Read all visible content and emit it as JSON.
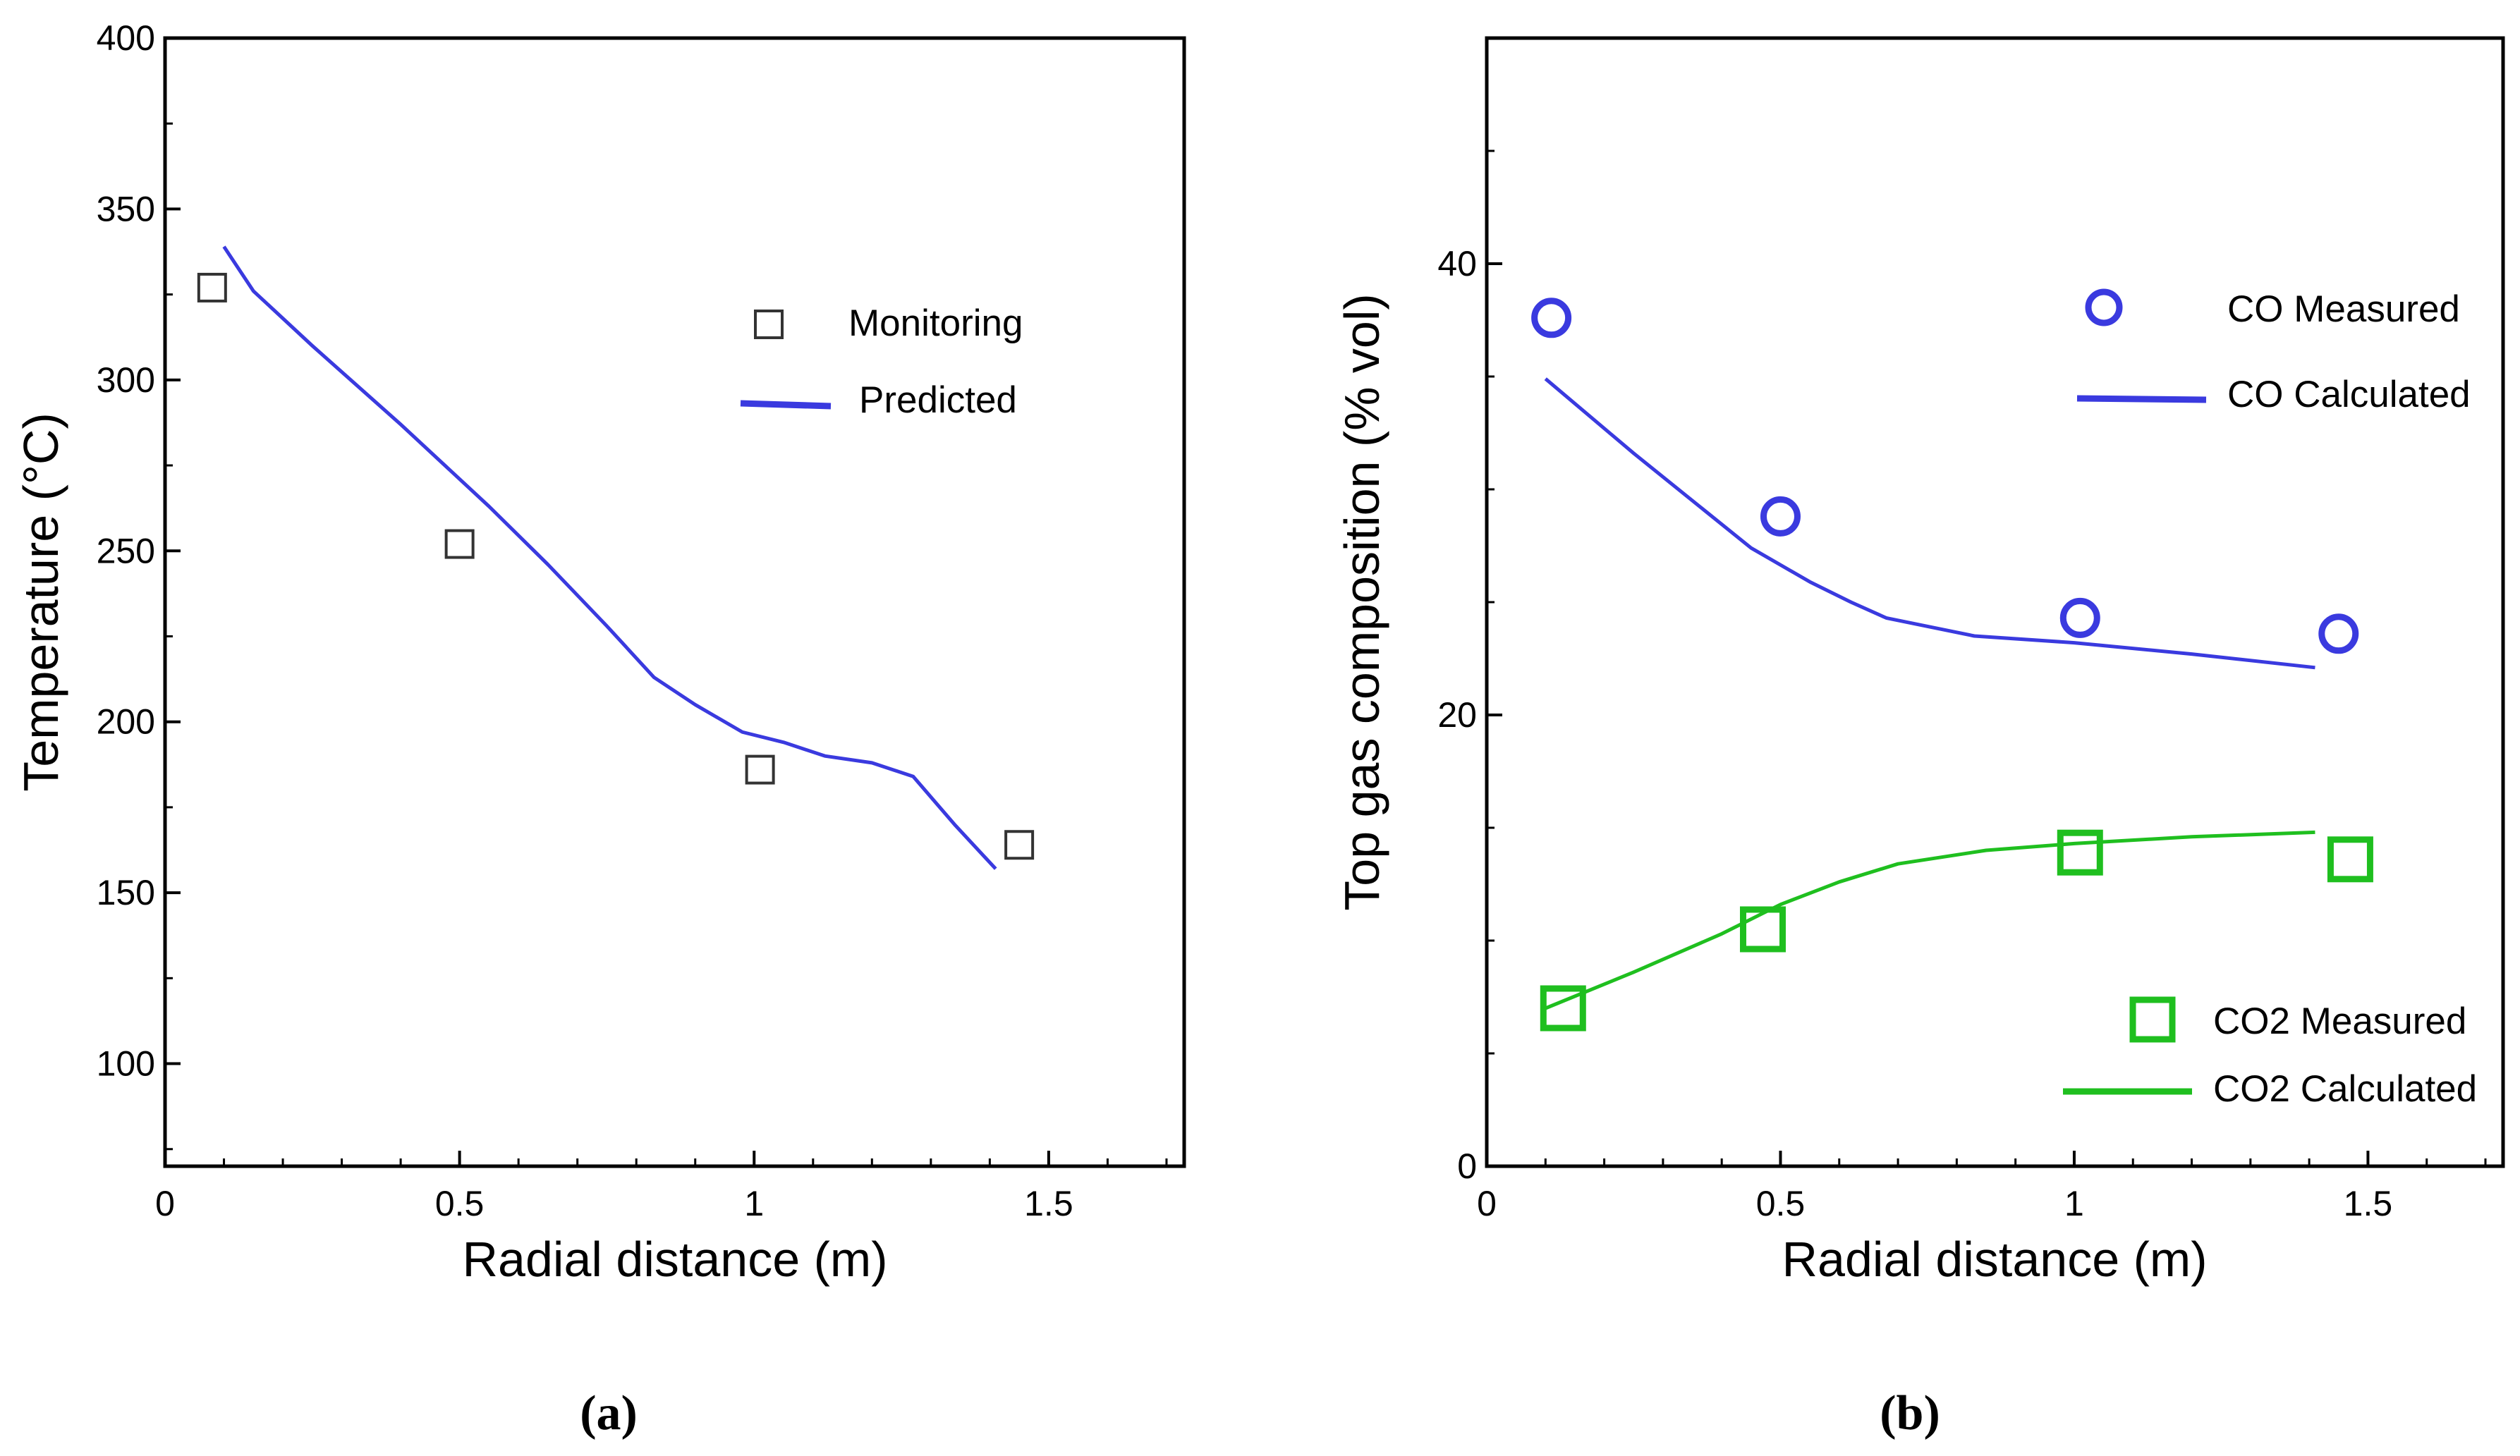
{
  "chart_data": [
    {
      "panel": "a",
      "type": "line+scatter",
      "xlabel": "Radial distance (m)",
      "ylabel": "Temperature (°C)",
      "xlim": [
        0,
        1.73
      ],
      "ylim": [
        70,
        400
      ],
      "xticks": [
        {
          "v": 0,
          "label": "0"
        },
        {
          "v": 0.5,
          "label": "0.5"
        },
        {
          "v": 1,
          "label": "1"
        },
        {
          "v": 1.5,
          "label": "1.5"
        }
      ],
      "yticks": [
        {
          "v": 100,
          "label": "100"
        },
        {
          "v": 150,
          "label": "150"
        },
        {
          "v": 200,
          "label": "200"
        },
        {
          "v": 250,
          "label": "250"
        },
        {
          "v": 300,
          "label": "300"
        },
        {
          "v": 350,
          "label": "350"
        },
        {
          "v": 400,
          "label": "400"
        }
      ],
      "series": [
        {
          "name": "Monitoring",
          "kind": "scatter",
          "marker": "square",
          "color": "#333333",
          "x": [
            0.08,
            0.5,
            1.01,
            1.45
          ],
          "y": [
            327,
            252,
            186,
            164
          ]
        },
        {
          "name": "Predicted",
          "kind": "line",
          "color": "#3a3adf",
          "x": [
            0.1,
            0.15,
            0.25,
            0.4,
            0.55,
            0.65,
            0.75,
            0.83,
            0.9,
            0.98,
            1.05,
            1.12,
            1.2,
            1.27,
            1.34,
            1.41
          ],
          "y": [
            339,
            326,
            310,
            287,
            263,
            246,
            228,
            213,
            205,
            197,
            194,
            190,
            188,
            184,
            170,
            157
          ]
        }
      ],
      "legend": [
        {
          "label": "Monitoring",
          "marker": "square"
        },
        {
          "label": "Predicted",
          "marker": "line"
        }
      ],
      "caption": "(a)"
    },
    {
      "panel": "b",
      "type": "line+scatter",
      "xlabel": "Radial distance (m)",
      "ylabel": "Top gas composition (% vol)",
      "xlim": [
        0,
        1.73
      ],
      "ylim": [
        0,
        50
      ],
      "xticks": [
        {
          "v": 0,
          "label": "0"
        },
        {
          "v": 0.5,
          "label": "0.5"
        },
        {
          "v": 1,
          "label": "1"
        },
        {
          "v": 1.5,
          "label": "1.5"
        }
      ],
      "yticks": [
        {
          "v": 0,
          "label": "0"
        },
        {
          "v": 20,
          "label": "20"
        },
        {
          "v": 40,
          "label": "40"
        }
      ],
      "series": [
        {
          "name": "CO Measured",
          "kind": "scatter",
          "marker": "circle",
          "color": "#3a3adf",
          "x": [
            0.11,
            0.5,
            1.01,
            1.45
          ],
          "y": [
            37.6,
            28.8,
            24.3,
            23.6
          ]
        },
        {
          "name": "CO Calculated",
          "kind": "line",
          "color": "#3a3adf",
          "x": [
            0.1,
            0.25,
            0.45,
            0.55,
            0.62,
            0.68,
            0.83,
            1.0,
            1.2,
            1.41
          ],
          "y": [
            34.9,
            31.6,
            27.4,
            25.9,
            25.0,
            24.3,
            23.5,
            23.2,
            22.7,
            22.1
          ]
        },
        {
          "name": "CO2 Measured",
          "kind": "scatter",
          "marker": "square",
          "color": "#1fbf1f",
          "x": [
            0.13,
            0.47,
            1.01,
            1.47
          ],
          "y": [
            7.0,
            10.5,
            13.9,
            13.6
          ]
        },
        {
          "name": "CO2 Calculated",
          "kind": "line",
          "color": "#1fbf1f",
          "x": [
            0.1,
            0.25,
            0.4,
            0.5,
            0.6,
            0.7,
            0.85,
            1.0,
            1.2,
            1.41
          ],
          "y": [
            7.0,
            8.6,
            10.3,
            11.6,
            12.6,
            13.4,
            14.0,
            14.3,
            14.6,
            14.8
          ]
        }
      ],
      "legend": [
        {
          "label": "CO Measured",
          "marker": "circle"
        },
        {
          "label": "CO Calculated",
          "marker": "line"
        },
        {
          "label": "CO2 Measured",
          "marker": "square"
        },
        {
          "label": "CO2 Calculated",
          "marker": "line"
        }
      ],
      "caption": "(b)"
    }
  ]
}
